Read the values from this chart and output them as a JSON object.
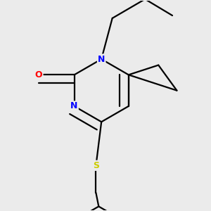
{
  "background_color": "#ebebeb",
  "bond_color": "#000000",
  "atom_colors": {
    "N": "#0000ff",
    "O": "#ff0000",
    "S": "#cccc00",
    "C": "#000000"
  },
  "figsize": [
    3.0,
    3.0
  ],
  "dpi": 100
}
